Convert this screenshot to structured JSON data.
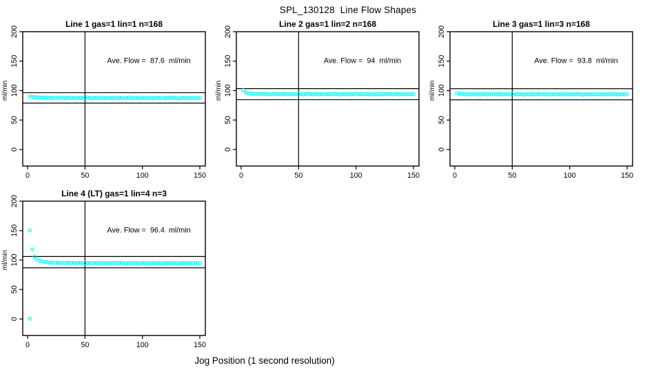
{
  "chart_data": {
    "type": "scatter",
    "title": "SPL_130128  Line Flow Shapes",
    "xlabel": "Jog Position (1 second resolution)",
    "marker": {
      "shape": "open-circle",
      "color": "#00FFFF",
      "radius": 2.2
    },
    "line_color": "#000000",
    "axes": {
      "x_ticks": [
        0,
        50,
        100,
        150
      ],
      "y_ticks": [
        0,
        50,
        100,
        150,
        200
      ],
      "xlim": [
        0,
        150
      ],
      "ylim": [
        0,
        200
      ],
      "ylabel": "ml/min",
      "grid": false,
      "vline_x": 50
    },
    "panels": [
      {
        "title": "Line 1 gas=1 lin=1 n=168",
        "annotation": "Ave. Flow =  87.6  ml/min",
        "avg_flow": 87.6,
        "gas": 1,
        "lin": 1,
        "n": 168,
        "ref_upper": 96.4,
        "ref_lower": 78.8,
        "x_start": 2,
        "x_step": 2,
        "values": [
          90.2,
          89.4,
          88.9,
          88.6,
          88.3,
          88.5,
          87.9,
          88.2,
          87.6,
          88.0,
          87.4,
          87.8,
          88.3,
          87.5,
          87.9,
          87.2,
          87.7,
          88.1,
          87.4,
          87.8,
          87.1,
          87.6,
          88.0,
          87.3,
          87.8,
          88.2,
          87.5,
          87.0,
          87.6,
          88.1,
          87.4,
          87.9,
          87.2,
          87.7,
          88.0,
          87.3,
          86.9,
          87.5,
          88.0,
          87.4,
          87.8,
          87.1,
          87.6,
          88.2,
          87.5,
          87.0,
          87.7,
          88.1,
          87.3,
          87.8,
          87.2,
          87.6,
          88.0,
          87.4,
          86.9,
          87.5,
          87.9,
          87.3,
          87.7,
          87.1,
          87.6,
          88.0,
          87.4,
          87.8,
          87.2,
          86.8,
          87.5,
          87.9,
          87.3,
          87.7,
          87.1,
          87.6,
          87.9,
          87.3,
          87.6
        ],
        "extra_points": []
      },
      {
        "title": "Line 2 gas=1 lin=2 n=168",
        "annotation": "Ave. Flow =  94  ml/min",
        "avg_flow": 94,
        "gas": 1,
        "lin": 2,
        "n": 168,
        "ref_upper": 103.4,
        "ref_lower": 84.6,
        "x_start": 2,
        "x_step": 2,
        "values": [
          100.6,
          96.8,
          95.2,
          94.6,
          94.9,
          94.2,
          94.6,
          93.9,
          94.3,
          94.7,
          94.0,
          93.6,
          94.2,
          94.6,
          93.9,
          94.3,
          93.7,
          94.1,
          94.5,
          93.8,
          94.2,
          93.6,
          94.0,
          94.4,
          93.8,
          94.3,
          93.7,
          94.1,
          94.6,
          93.9,
          93.5,
          94.1,
          94.5,
          93.8,
          94.2,
          93.6,
          94.0,
          94.4,
          93.7,
          94.2,
          94.6,
          93.9,
          93.5,
          94.1,
          94.4,
          93.8,
          94.2,
          93.6,
          94.0,
          94.5,
          93.8,
          94.2,
          93.6,
          94.1,
          94.4,
          93.7,
          94.1,
          93.5,
          93.9,
          94.3,
          93.7,
          94.2,
          94.5,
          93.8,
          94.1,
          93.6,
          94.0,
          94.4,
          93.8,
          94.2,
          93.6,
          94.0,
          94.3,
          93.7,
          94.1
        ],
        "extra_points": []
      },
      {
        "title": "Line 3 gas=1 lin=3 n=168",
        "annotation": "Ave. Flow =  93.8  ml/min",
        "avg_flow": 93.8,
        "gas": 1,
        "lin": 3,
        "n": 168,
        "ref_upper": 103.2,
        "ref_lower": 84.4,
        "x_start": 2,
        "x_step": 2,
        "values": [
          95.4,
          94.6,
          93.9,
          94.4,
          93.6,
          94.1,
          93.3,
          94.0,
          94.5,
          93.7,
          93.2,
          93.9,
          94.4,
          93.6,
          94.1,
          93.4,
          93.9,
          94.3,
          93.5,
          94.0,
          93.3,
          93.8,
          94.3,
          93.6,
          94.1,
          93.4,
          93.9,
          94.4,
          93.6,
          93.1,
          93.8,
          94.2,
          93.5,
          94.0,
          93.3,
          93.8,
          94.3,
          93.6,
          94.1,
          93.4,
          93.8,
          93.2,
          93.9,
          94.3,
          93.6,
          94.0,
          93.3,
          93.8,
          94.2,
          93.5,
          94.0,
          93.4,
          93.9,
          94.3,
          93.6,
          93.1,
          93.8,
          94.2,
          93.5,
          93.9,
          93.3,
          93.8,
          94.2,
          93.6,
          94.0,
          93.4,
          93.9,
          94.2,
          93.5,
          93.9,
          93.3,
          93.8,
          94.1,
          93.5,
          93.9
        ],
        "extra_points": []
      },
      {
        "title": "Line 4 (LT) gas=1 lin=4 n=3",
        "annotation": "Ave. Flow =  96.4  ml/min",
        "avg_flow": 96.4,
        "gas": 1,
        "lin": 4,
        "n": 3,
        "ref_upper": 106.0,
        "ref_lower": 86.8,
        "x_start": 2,
        "x_step": 2,
        "values": [
          150.5,
          118.0,
          105.5,
          101.0,
          99.2,
          98.0,
          97.2,
          96.6,
          96.0,
          95.6,
          95.9,
          95.2,
          95.6,
          94.9,
          95.4,
          94.7,
          95.2,
          95.6,
          94.8,
          95.3,
          94.6,
          95.1,
          95.5,
          94.8,
          95.2,
          94.5,
          95.0,
          95.4,
          94.7,
          95.1,
          94.4,
          94.9,
          95.3,
          94.6,
          95.0,
          94.3,
          94.8,
          95.2,
          94.5,
          95.0,
          95.4,
          94.7,
          94.2,
          94.8,
          95.2,
          94.5,
          94.9,
          94.3,
          94.8,
          95.2,
          94.5,
          94.9,
          94.2,
          94.7,
          95.1,
          94.4,
          94.8,
          94.2,
          94.7,
          95.1,
          94.4,
          94.9,
          95.2,
          94.5,
          94.9,
          94.3,
          94.7,
          95.1,
          94.4,
          94.8,
          94.2,
          94.7,
          95.0,
          94.4,
          94.8
        ],
        "extra_points": [
          [
            2,
            0.5
          ]
        ]
      }
    ]
  }
}
